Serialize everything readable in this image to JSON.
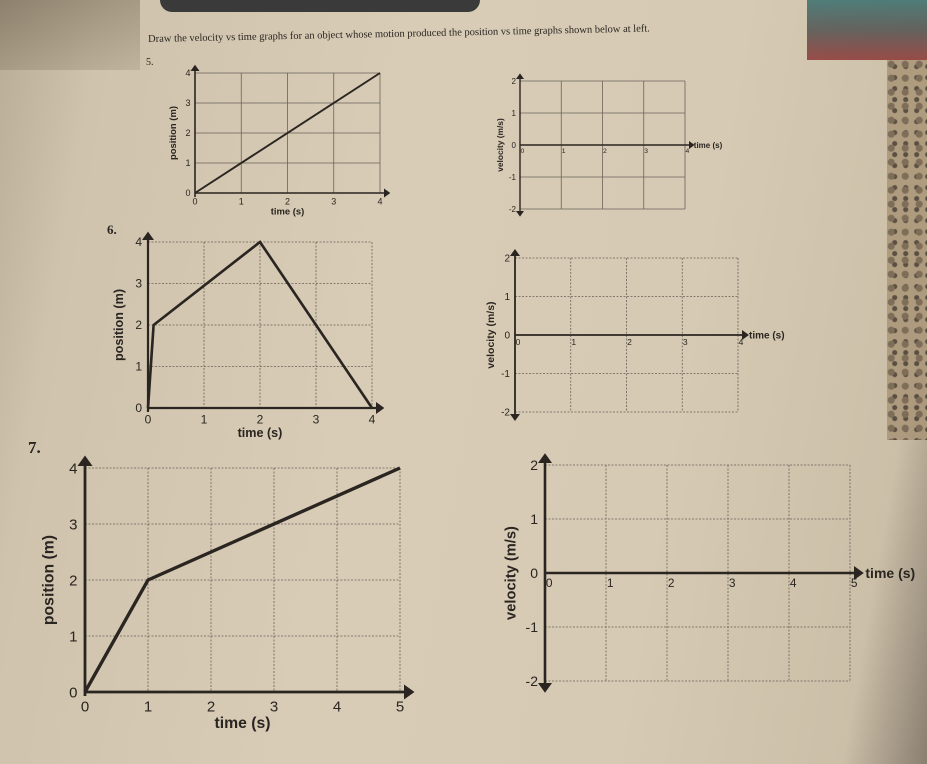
{
  "instructions": "Draw the velocity vs time graphs for an object whose motion produced the position vs time graphs shown below at left.",
  "problems": [
    "5.",
    "6.",
    "7."
  ],
  "colors": {
    "paper": "#d6cab4",
    "ink": "#2a2520"
  },
  "chart_data": [
    {
      "type": "line",
      "problem": "5.",
      "xlabel": "time (s)",
      "ylabel": "position (m)",
      "xlim": [
        0,
        4
      ],
      "ylim": [
        0,
        4
      ],
      "xticks": [
        "0",
        "1",
        "2",
        "3",
        "4"
      ],
      "yticks": [
        "0",
        "1",
        "2",
        "3",
        "4"
      ],
      "grid": true,
      "series": [
        {
          "points": [
            [
              0,
              0
            ],
            [
              4,
              4
            ]
          ]
        }
      ]
    },
    {
      "type": "line",
      "problem": "5.",
      "xlabel": "time (s)",
      "ylabel": "velocity (m/s)",
      "xlim": [
        0,
        4
      ],
      "ylim": [
        -2,
        2
      ],
      "xticks": [
        "0",
        "1",
        "2",
        "3",
        "4"
      ],
      "yticks": [
        "-2",
        "-1",
        "0",
        "1",
        "2"
      ],
      "grid": true,
      "series": []
    },
    {
      "type": "line",
      "problem": "6.",
      "xlabel": "time (s)",
      "ylabel": "position (m)",
      "xlim": [
        0,
        4
      ],
      "ylim": [
        0,
        4
      ],
      "xticks": [
        "0",
        "1",
        "2",
        "3",
        "4"
      ],
      "yticks": [
        "0",
        "1",
        "2",
        "3",
        "4"
      ],
      "grid": true,
      "series": [
        {
          "points": [
            [
              0,
              0
            ],
            [
              0.1,
              2
            ],
            [
              2,
              4
            ],
            [
              4,
              0
            ]
          ]
        }
      ]
    },
    {
      "type": "line",
      "problem": "6.",
      "xlabel": "time (s)",
      "ylabel": "velocity (m/s)",
      "xlim": [
        0,
        4
      ],
      "ylim": [
        -2,
        2
      ],
      "xticks": [
        "0",
        "1",
        "2",
        "3",
        "4"
      ],
      "yticks": [
        "-2",
        "-1",
        "0",
        "1",
        "2"
      ],
      "grid": true,
      "series": []
    },
    {
      "type": "line",
      "problem": "7.",
      "xlabel": "time (s)",
      "ylabel": "position (m)",
      "xlim": [
        0,
        5
      ],
      "ylim": [
        0,
        4
      ],
      "xticks": [
        "0",
        "1",
        "2",
        "3",
        "4",
        "5"
      ],
      "yticks": [
        "0",
        "1",
        "2",
        "3",
        "4"
      ],
      "grid": true,
      "series": [
        {
          "points": [
            [
              0,
              0
            ],
            [
              1,
              2
            ],
            [
              5,
              4
            ]
          ]
        }
      ]
    },
    {
      "type": "line",
      "problem": "7.",
      "xlabel": "time (s)",
      "ylabel": "velocity (m/s)",
      "xlim": [
        0,
        5
      ],
      "ylim": [
        -2,
        2
      ],
      "xticks": [
        "0",
        "1",
        "2",
        "3",
        "4",
        "5"
      ],
      "yticks": [
        "-2",
        "-1",
        "0",
        "1",
        "2"
      ],
      "grid": true,
      "series": []
    }
  ]
}
